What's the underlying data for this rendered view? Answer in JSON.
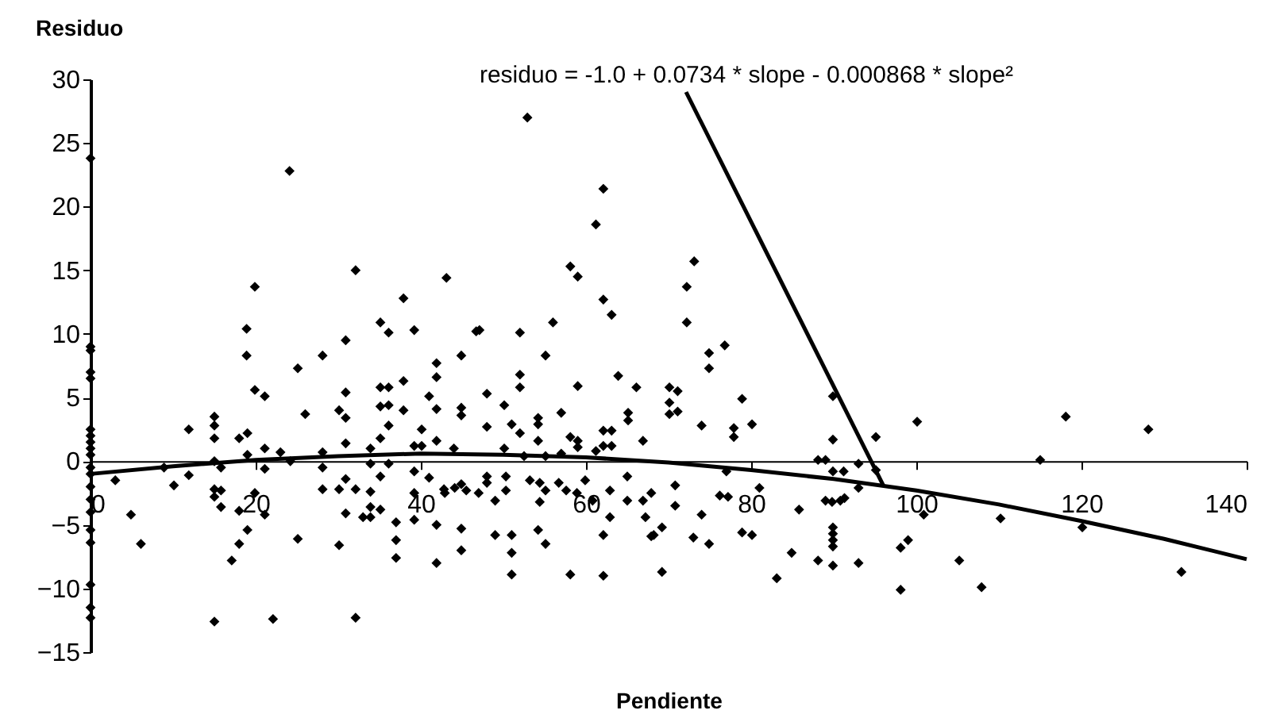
{
  "chart_data": {
    "type": "scatter",
    "xlabel": "Pendiente",
    "ylabel": "Residuo",
    "xlim": [
      0,
      140
    ],
    "xticks": [
      0,
      20,
      40,
      60,
      80,
      100,
      120,
      140
    ],
    "ylim": [
      -15,
      30
    ],
    "yticks": [
      -15,
      -10,
      -5,
      0,
      5,
      10,
      15,
      20,
      25,
      30
    ],
    "grid": false,
    "marker": "diamond",
    "annotations": [
      {
        "text": "residuo = -1.0 + 0.0734 * slope - 0.000868 * slope²",
        "x": 96,
        "y": -1.9
      }
    ],
    "series": [
      {
        "color": "#000000",
        "x": [
          0,
          0,
          0,
          0,
          0,
          0,
          0,
          0,
          0,
          0,
          0,
          0,
          0,
          0,
          0,
          0,
          0,
          0,
          0,
          0,
          24.1,
          19.9,
          18.9,
          18.9,
          32.1,
          43.1,
          37.9,
          35.1,
          36.1,
          39.2,
          30.9,
          28.1,
          44.9,
          41.9,
          46.7,
          52.9,
          62.1,
          61.2,
          58.1,
          59,
          62.1,
          63.1,
          73.1,
          72.2,
          72.2,
          74.9,
          76.8,
          47.1,
          52,
          56,
          55.1,
          3,
          4.9,
          6.1,
          8.9,
          10.1,
          11.9,
          11.9,
          15,
          15,
          15,
          15,
          15,
          15,
          15.8,
          15.8,
          15.8,
          15,
          17.1,
          18,
          18,
          19,
          18,
          19,
          19,
          19.9,
          21.1,
          19.9,
          21.1,
          21.1,
          21.1,
          22.1,
          23,
          24.2,
          25.1,
          25.1,
          26,
          28.1,
          28.1,
          28.1,
          30.1,
          30.1,
          30.1,
          30.9,
          30.9,
          30.9,
          30.9,
          30.9,
          32.1,
          32.1,
          33,
          33.9,
          33.9,
          33.9,
          33.9,
          33.9,
          35.1,
          35.1,
          35.1,
          35.1,
          35.1,
          36.1,
          36.1,
          36.1,
          36.1,
          37,
          37,
          37,
          37.9,
          37.9,
          39.2,
          39.2,
          39.2,
          39.2,
          40.1,
          40.1,
          41,
          41,
          41.9,
          41.9,
          41.9,
          41.9,
          41.9,
          42.8,
          44,
          44.9,
          44.9,
          44.9,
          44.9,
          44.9,
          48,
          52,
          52,
          59,
          63.9,
          66.1,
          70.1,
          71.1,
          70.1,
          70.1,
          71.1,
          74.9,
          78.9,
          80.1,
          77.9,
          77.9,
          74,
          66.9,
          65.1,
          65.1,
          62.1,
          63.1,
          62.1,
          63.1,
          61.2,
          58.1,
          59,
          59,
          57,
          54.2,
          54.2,
          54.2,
          52,
          51,
          50.1,
          48,
          50.1,
          52.5,
          55.1,
          57,
          42.9,
          44.1,
          45.5,
          47,
          48,
          48,
          49,
          50.3,
          50.3,
          53.2,
          54.4,
          54.4,
          55.1,
          56.7,
          57.6,
          58.9,
          59.9,
          60.8,
          62.9,
          62.9,
          65,
          65,
          66.9,
          67.2,
          67.9,
          67.9,
          69.2,
          69.2,
          70.8,
          70.8,
          74,
          73,
          74.9,
          76.2,
          77.2,
          78.9,
          80.1,
          81,
          77,
          85.8,
          84.9,
          83.1,
          88.1,
          89.9,
          89.9,
          89.9,
          89.9,
          89.9,
          89,
          90.8,
          89.9,
          91.2,
          88.1,
          89.9,
          89.9,
          49,
          51,
          51,
          51,
          54.2,
          55.1,
          58.1,
          62.1,
          62.1,
          68.2,
          95.1,
          100.1,
          118.1,
          128.1,
          115,
          89,
          93,
          93,
          95.1,
          89.8,
          91.3,
          93,
          98.1,
          99,
          98.1,
          100.9,
          105.2,
          107.9,
          110.2,
          120.1,
          132.1
        ],
        "values": [
          23.8,
          9.0,
          8.7,
          7.0,
          6.5,
          2.5,
          2.0,
          1.5,
          1.0,
          0.5,
          -0.5,
          -1.0,
          -2.0,
          -3.0,
          -4.0,
          -5.4,
          -6.4,
          -9.7,
          -11.5,
          -12.3,
          22.8,
          13.7,
          10.4,
          8.3,
          15.0,
          14.4,
          12.8,
          10.9,
          10.1,
          10.3,
          9.5,
          8.3,
          8.3,
          7.7,
          10.2,
          27,
          21.4,
          18.6,
          15.3,
          14.5,
          12.7,
          11.5,
          15.7,
          13.7,
          10.9,
          8.5,
          9.1,
          10.3,
          10.1,
          10.9,
          8.3,
          -1.5,
          -4.2,
          -6.5,
          -0.5,
          -1.9,
          2.5,
          -1.1,
          3.5,
          2.8,
          1.8,
          0,
          -2.2,
          -2.8,
          -2.3,
          -3.6,
          -0.5,
          -12.6,
          -7.8,
          -6.5,
          -3.9,
          -5.4,
          1.8,
          2.2,
          0.5,
          5.6,
          5.1,
          -2.5,
          -4.2,
          -0.6,
          1.0,
          -12.4,
          0.7,
          0,
          7.3,
          -6.1,
          3.7,
          -0.5,
          -2.2,
          0.7,
          4.0,
          -6.6,
          -2.2,
          5.4,
          3.4,
          1.4,
          -1.4,
          -4.1,
          -12.3,
          -2.2,
          -4.4,
          -0.2,
          1.0,
          -2.4,
          -3.6,
          -4.4,
          5.8,
          4.3,
          1.8,
          -1.2,
          -3.8,
          5.8,
          4.4,
          2.8,
          -0.2,
          -4.8,
          -6.2,
          -7.6,
          6.3,
          4.0,
          1.2,
          -0.8,
          -2.5,
          -4.6,
          2.5,
          1.2,
          5.1,
          -1.3,
          6.6,
          4.1,
          1.6,
          -5.0,
          -8.0,
          -2.2,
          1.0,
          4.2,
          3.6,
          -1.8,
          -5.3,
          -7.0,
          5.3,
          6.8,
          5.8,
          5.9,
          6.7,
          5.8,
          5.8,
          5.5,
          4.6,
          3.7,
          3.9,
          7.3,
          4.9,
          2.9,
          2.6,
          1.9,
          2.8,
          1.6,
          3.8,
          3.2,
          2.4,
          2.4,
          1.2,
          1.2,
          0.8,
          1.9,
          1.6,
          1.1,
          3.8,
          3.4,
          2.9,
          1.6,
          2.2,
          2.9,
          4.4,
          2.7,
          1.0,
          0.4,
          0.4,
          0.6,
          -2.5,
          -2.1,
          -2.3,
          -2.5,
          -1.7,
          -1.2,
          -3.1,
          -1.2,
          -2.3,
          -1.5,
          -1.7,
          -3.2,
          -2.3,
          -1.7,
          -2.3,
          -2.5,
          -1.5,
          -3.1,
          -2.3,
          -4.4,
          -1.2,
          -3.1,
          -3.1,
          -4.4,
          -2.5,
          -5.9,
          -5.2,
          -8.7,
          -3.5,
          -1.9,
          -4.2,
          -6.0,
          -6.5,
          -2.7,
          -2.8,
          -5.6,
          -5.8,
          -2.1,
          -0.8,
          -3.8,
          -7.2,
          -9.2,
          -7.8,
          -8.2,
          -5.2,
          -5.7,
          -6.2,
          -6.7,
          -3.1,
          -3.1,
          -0.8,
          -0.8,
          0.1,
          1.7,
          5.1,
          -5.8,
          -5.8,
          -7.2,
          -8.9,
          -5.4,
          -6.5,
          -8.9,
          -9.0,
          -5.8,
          -5.8,
          1.9,
          3.1,
          3.5,
          2.5,
          0.1,
          0.1,
          -0.2,
          -2.1,
          -0.7,
          -3.2,
          -2.9,
          -8.0,
          -6.8,
          -6.2,
          -10.1,
          -4.2,
          -7.8,
          -9.9,
          -4.5,
          -5.2,
          -8.7
        ]
      },
      {
        "type": "line",
        "color": "#000000",
        "marker": "none",
        "x": [
          0,
          10,
          20,
          30,
          40,
          50,
          60,
          70,
          80,
          90,
          100,
          110,
          120,
          130,
          140
        ],
        "values": [
          -1.0,
          -0.4,
          0.1,
          0.4,
          0.6,
          0.5,
          0.3,
          -0.1,
          -0.7,
          -1.4,
          -2.3,
          -3.4,
          -4.7,
          -6.1,
          -7.7
        ]
      }
    ]
  }
}
